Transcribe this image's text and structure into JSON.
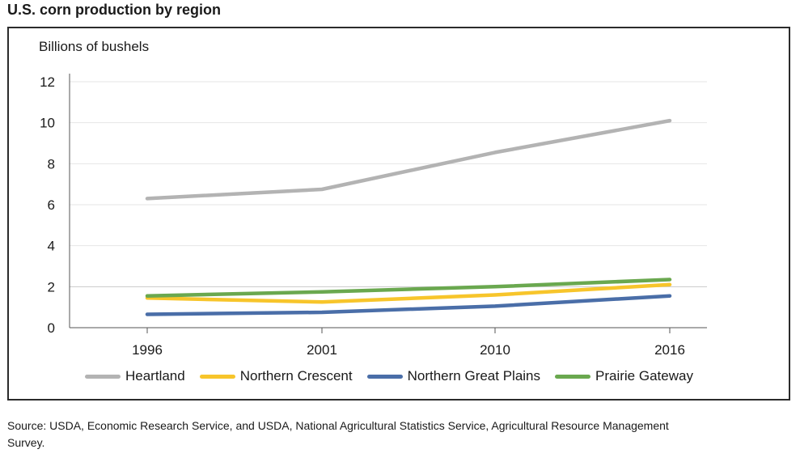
{
  "title": "U.S. corn production by region",
  "source": "Source: USDA, Economic Research Service, and USDA, National Agricultural Statistics Service, Agricultural Resource Management Survey.",
  "chart_data": {
    "type": "line",
    "title": "U.S. corn production by region",
    "ylabel": "Billions of bushels",
    "xlabel": "",
    "categories": [
      "1996",
      "2001",
      "2010",
      "2016"
    ],
    "ylim": [
      0,
      12
    ],
    "yticks": [
      0,
      2,
      4,
      6,
      8,
      10,
      12
    ],
    "grid": true,
    "legend": "bottom",
    "series": [
      {
        "name": "Heartland",
        "color": "#b3b3b3",
        "values": [
          6.3,
          6.75,
          8.55,
          10.1
        ]
      },
      {
        "name": "Northern Crescent",
        "color": "#f7c52b",
        "values": [
          1.45,
          1.25,
          1.6,
          2.1
        ]
      },
      {
        "name": "Northern Great Plains",
        "color": "#4a6ea8",
        "values": [
          0.65,
          0.75,
          1.05,
          1.55
        ]
      },
      {
        "name": "Prairie Gateway",
        "color": "#6aa84f",
        "values": [
          1.55,
          1.75,
          2.0,
          2.35
        ]
      }
    ]
  }
}
